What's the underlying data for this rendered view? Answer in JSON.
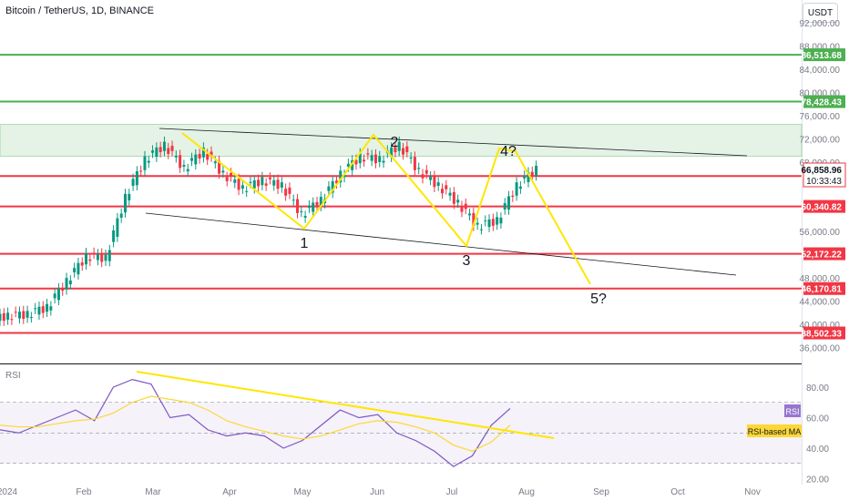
{
  "header": {
    "title": "Bitcoin / TetherUS, 1D, BINANCE",
    "currency_button": "USDT"
  },
  "price_axis": {
    "ticks": [
      "92,000.00",
      "88,000.00",
      "84,000.00",
      "80,000.00",
      "76,000.00",
      "72,000.00",
      "68,000.00",
      "56,000.00",
      "48,000.00",
      "44,000.00",
      "40,000.00",
      "36,000.00"
    ],
    "last_price": "66,858.96",
    "countdown": "10:33:43",
    "upper_price_label": "72,000.00"
  },
  "levels": [
    {
      "value": 86513.68,
      "label": "86,513.68",
      "color": "#4caf50"
    },
    {
      "value": 78428.43,
      "label": "78,428.43",
      "color": "#4caf50"
    },
    {
      "value": 65592.06,
      "label": "65,592.06",
      "color": "#f23645"
    },
    {
      "value": 60340.82,
      "label": "60,340.82",
      "color": "#f23645"
    },
    {
      "value": 52172.22,
      "label": "52,172.22",
      "color": "#f23645"
    },
    {
      "value": 46170.81,
      "label": "46,170.81",
      "color": "#f23645"
    },
    {
      "value": 38502.33,
      "label": "38,502.33",
      "color": "#f23645"
    }
  ],
  "wave_labels": [
    "1",
    "2",
    "3",
    "4?",
    "5?"
  ],
  "rsi": {
    "title": "RSI",
    "ticks": [
      "80.00",
      "60.00",
      "40.00",
      "20.00"
    ],
    "badge": "RSI",
    "ma_badge": "RSI-based MA"
  },
  "time_axis": {
    "labels": [
      "2024",
      "Feb",
      "Mar",
      "Apr",
      "May",
      "Jun",
      "Jul",
      "Aug",
      "Sep",
      "Oct",
      "Nov"
    ]
  },
  "colors": {
    "green": "#4caf50",
    "red": "#f23645",
    "yellow": "#ffe600",
    "candle_up": "#089981",
    "candle_down": "#f23645",
    "rsi_line": "#7e57c2",
    "rsi_ma": "#fdd835"
  },
  "chart_data": {
    "type": "candlestick",
    "title": "Bitcoin / TetherUS, 1D, BINANCE",
    "x": [
      "2024-01-15",
      "2024-01-22",
      "2024-01-29",
      "2024-02-05",
      "2024-02-12",
      "2024-02-19",
      "2024-02-26",
      "2024-03-04",
      "2024-03-11",
      "2024-03-18",
      "2024-03-25",
      "2024-04-01",
      "2024-04-08",
      "2024-04-15",
      "2024-04-22",
      "2024-04-29",
      "2024-05-06",
      "2024-05-13",
      "2024-05-20",
      "2024-05-27",
      "2024-06-03",
      "2024-06-10",
      "2024-06-17",
      "2024-06-24",
      "2024-07-01",
      "2024-07-08",
      "2024-07-15",
      "2024-07-22"
    ],
    "close": [
      41500,
      41800,
      43000,
      47500,
      51800,
      51500,
      62000,
      68500,
      71000,
      67000,
      70000,
      66000,
      63500,
      64900,
      64000,
      59000,
      61500,
      66000,
      69000,
      68500,
      71000,
      66500,
      64000,
      61000,
      57000,
      58000,
      64000,
      66859
    ],
    "ylim": [
      34000,
      94000
    ],
    "rsi": {
      "ylim": [
        20,
        90
      ],
      "values": [
        52,
        50,
        55,
        60,
        65,
        58,
        80,
        85,
        82,
        60,
        62,
        52,
        48,
        50,
        48,
        40,
        45,
        55,
        65,
        60,
        62,
        50,
        45,
        38,
        28,
        35,
        55,
        66
      ],
      "ma": [
        55,
        54,
        54,
        56,
        58,
        59,
        63,
        70,
        74,
        72,
        70,
        65,
        58,
        54,
        51,
        48,
        46,
        48,
        52,
        56,
        58,
        57,
        54,
        50,
        42,
        38,
        44,
        55
      ]
    }
  }
}
